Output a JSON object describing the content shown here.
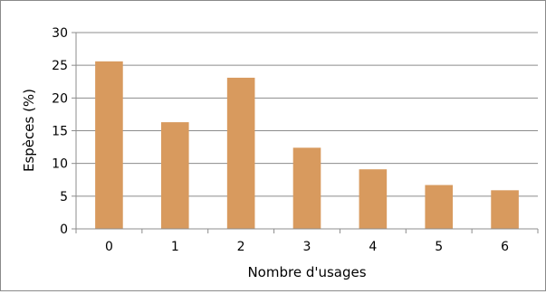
{
  "chart_data": {
    "type": "bar",
    "title": "",
    "xlabel": "Nombre d'usages",
    "ylabel": "Espèces (%)",
    "categories": [
      "0",
      "1",
      "2",
      "3",
      "4",
      "5",
      "6"
    ],
    "values": [
      25.6,
      16.3,
      23.1,
      12.4,
      9.1,
      6.7,
      5.9
    ],
    "ylim": [
      0,
      30
    ],
    "yticks": [
      "0",
      "5",
      "10",
      "15",
      "20",
      "25",
      "30"
    ],
    "grid": "horizontal",
    "legend": "none",
    "bar_color": "#D89A5E",
    "grid_color": "#8c8c8c"
  }
}
